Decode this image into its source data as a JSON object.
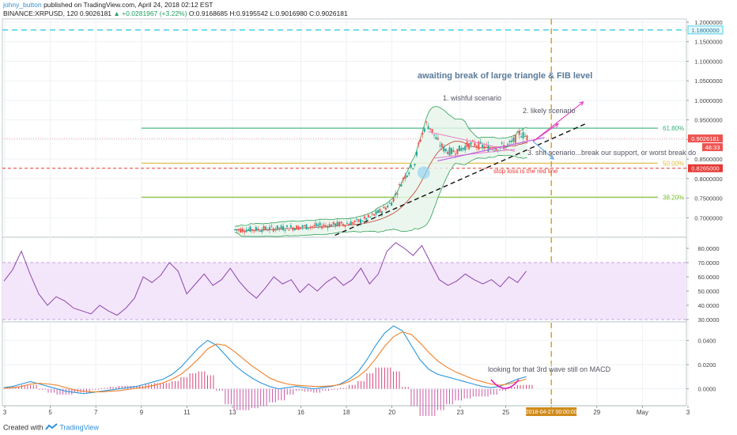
{
  "header": {
    "user": "johny_button",
    "published_text": "published on TradingView.com, April 24, 2018 02:12 EST",
    "symbol": "BINANCE:XRPUSD, 120",
    "open_price": "0.9026181",
    "change": "+0.0281967 (+3.22%)",
    "ohlc_text": "O:0.9168685 H:0.9195542 L:0.9016980 C:0.9026181"
  },
  "footer": {
    "created_with": "Created with",
    "brand": "TradingView"
  },
  "colors": {
    "up": "#26a69a",
    "down": "#ef5350",
    "bb": "#2e9e56",
    "bbfill": "#e6f5ea",
    "rsi": "#8e44ad",
    "rsi_band": "#f3e6fb",
    "macd": "#2b96d9",
    "signal": "#f0802a",
    "fib618": "#36b27a",
    "fib50": "#e0b83a",
    "fib382": "#7cbf2a",
    "stop": "#e53935",
    "target": "#22c6e6",
    "vline": "#e0a020",
    "annot_pink": "#e040c0",
    "annot_blue": "#64a8e8"
  },
  "chart_data": [
    {
      "type": "candlestick",
      "name": "price",
      "x_axis_labels": [
        "3",
        "5",
        "7",
        "9",
        "11",
        "13",
        "16",
        "18",
        "20",
        "23",
        "25",
        "27",
        "29",
        "May",
        "3"
      ],
      "x_axis_highlight": "2018-04-27 00:00:00",
      "ylim": [
        0.65,
        1.2
      ],
      "y_ticks": [
        "1.2000000",
        "1.1500000",
        "1.1000000",
        "1.0500000",
        "1.0000000",
        "0.9500000",
        "0.9000000",
        "0.8500000",
        "0.8000000",
        "0.7500000",
        "0.7000000",
        "0.6500000"
      ],
      "current_price": "0.9026181",
      "countdown": "48:33",
      "target_level": {
        "value": 1.18,
        "label": "1.1800000"
      },
      "stop_level": {
        "value": 0.8265,
        "label": "0.8265000"
      },
      "fib_levels": [
        {
          "label": "61.80%",
          "value": 0.929
        },
        {
          "label": "50.00%",
          "value": 0.8395
        },
        {
          "label": "38.20%",
          "value": 0.7525
        }
      ],
      "annotations": {
        "title": "awaiting break of large triangle & FIB level",
        "scenario1": "1. wishful scenario",
        "scenario2": "2. likely scenario",
        "scenario3": "3. shit scenario...break our support, or worst break do",
        "stop_note": "stop loss is the red line"
      },
      "price_path": [
        [
          1,
          0.66
        ],
        [
          6,
          0.665
        ],
        [
          11,
          0.67
        ],
        [
          13,
          0.676
        ],
        [
          14,
          0.68
        ],
        [
          15,
          0.685
        ],
        [
          15.5,
          0.69
        ],
        [
          16,
          0.7
        ],
        [
          16.3,
          0.71
        ],
        [
          16.6,
          0.72
        ],
        [
          17,
          0.74
        ],
        [
          17.5,
          0.8
        ],
        [
          18,
          0.84
        ],
        [
          18.2,
          0.89
        ],
        [
          18.5,
          0.94
        ],
        [
          18.7,
          0.93
        ],
        [
          19,
          0.895
        ],
        [
          19.3,
          0.875
        ],
        [
          19.6,
          0.868
        ],
        [
          20,
          0.875
        ],
        [
          20.3,
          0.885
        ],
        [
          20.6,
          0.888
        ],
        [
          21,
          0.882
        ],
        [
          21.3,
          0.878
        ],
        [
          21.6,
          0.88
        ],
        [
          22,
          0.884
        ],
        [
          22.2,
          0.889
        ],
        [
          22.4,
          0.9
        ],
        [
          22.6,
          0.917
        ],
        [
          22.8,
          0.91
        ],
        [
          23,
          0.903
        ]
      ]
    },
    {
      "type": "line",
      "name": "RSI",
      "ylim": [
        30,
        85
      ],
      "y_ticks": [
        "80.0000",
        "70.0000",
        "60.0000",
        "50.0000",
        "40.0000",
        "30.0000"
      ],
      "band": [
        30,
        70
      ],
      "values": [
        57,
        65,
        78,
        62,
        48,
        40,
        46,
        43,
        38,
        36,
        34,
        40,
        36,
        33,
        38,
        45,
        60,
        56,
        61,
        70,
        64,
        48,
        55,
        62,
        54,
        58,
        66,
        57,
        50,
        45,
        52,
        60,
        55,
        58,
        49,
        55,
        50,
        56,
        60,
        54,
        58,
        66,
        55,
        62,
        78,
        84,
        80,
        75,
        82,
        70,
        58,
        54,
        57,
        62,
        58,
        55,
        58,
        53,
        60,
        56,
        64
      ]
    },
    {
      "type": "line",
      "name": "MACD",
      "ylim": [
        -0.012,
        0.052
      ],
      "y_ticks": [
        "0.0400",
        "0.0200",
        "0.0000"
      ],
      "annotation": "looking for that 3rd wave still on MACD",
      "macd": [
        0.001,
        0.002,
        0.004,
        0.006,
        0.004,
        0.002,
        0.0,
        -0.002,
        -0.003,
        -0.004,
        -0.003,
        -0.002,
        -0.001,
        0.0,
        0.001,
        0.002,
        0.004,
        0.006,
        0.008,
        0.012,
        0.018,
        0.026,
        0.034,
        0.04,
        0.036,
        0.028,
        0.02,
        0.014,
        0.009,
        0.005,
        0.002,
        0.0,
        0.001,
        0.002,
        0.001,
        0.0,
        0.001,
        0.002,
        0.004,
        0.008,
        0.014,
        0.024,
        0.036,
        0.046,
        0.052,
        0.048,
        0.036,
        0.024,
        0.016,
        0.012,
        0.01,
        0.008,
        0.006,
        0.004,
        0.002,
        0.001,
        0.002,
        0.005,
        0.008,
        0.01
      ],
      "signal": [
        0.0005,
        0.001,
        0.002,
        0.004,
        0.0045,
        0.004,
        0.003,
        0.001,
        -0.001,
        -0.002,
        -0.0025,
        -0.0025,
        -0.002,
        -0.0015,
        -0.0005,
        0.0005,
        0.0015,
        0.003,
        0.005,
        0.008,
        0.012,
        0.018,
        0.025,
        0.033,
        0.037,
        0.036,
        0.031,
        0.025,
        0.019,
        0.014,
        0.009,
        0.006,
        0.004,
        0.003,
        0.0025,
        0.002,
        0.002,
        0.0025,
        0.0035,
        0.006,
        0.01,
        0.016,
        0.025,
        0.035,
        0.043,
        0.047,
        0.045,
        0.038,
        0.03,
        0.023,
        0.018,
        0.014,
        0.011,
        0.008,
        0.006,
        0.004,
        0.003,
        0.004,
        0.006,
        0.008
      ]
    }
  ]
}
